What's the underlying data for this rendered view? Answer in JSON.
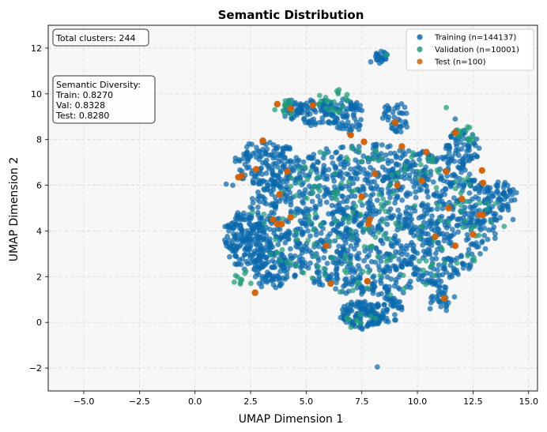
{
  "chart_data": {
    "type": "scatter",
    "title": "Semantic Distribution",
    "xlabel": "UMAP Dimension 1",
    "ylabel": "UMAP Dimension 2",
    "xlim": [
      -6.6,
      15.4
    ],
    "ylim": [
      -3.0,
      13.0
    ],
    "x_ticks": [
      -5.0,
      -2.5,
      0.0,
      2.5,
      5.0,
      7.5,
      10.0,
      12.5,
      15.0
    ],
    "y_ticks": [
      -2,
      0,
      2,
      4,
      6,
      8,
      10,
      12
    ],
    "x_tick_labels": [
      "−5.0",
      "−2.5",
      "0.0",
      "2.5",
      "5.0",
      "7.5",
      "10.0",
      "12.5",
      "15.0"
    ],
    "y_tick_labels": [
      "−2",
      "0",
      "2",
      "4",
      "6",
      "8",
      "10",
      "12"
    ],
    "grid": true,
    "legend_position": "top-right",
    "series": [
      {
        "name": "Training (n=144137)",
        "color": "#0a6aad",
        "count": 144137,
        "regions": [
          {
            "cx": 8.0,
            "cy": 4.5,
            "rx": 5.6,
            "ry": 3.3,
            "n": 1350
          },
          {
            "cx": 2.4,
            "cy": 3.6,
            "rx": 1.1,
            "ry": 1.2,
            "n": 180
          },
          {
            "cx": 3.4,
            "cy": 2.3,
            "rx": 0.8,
            "ry": 0.8,
            "n": 80
          },
          {
            "cx": 3.2,
            "cy": 7.0,
            "rx": 1.4,
            "ry": 1.0,
            "n": 130
          },
          {
            "cx": 5.4,
            "cy": 9.2,
            "rx": 0.9,
            "ry": 0.6,
            "n": 70
          },
          {
            "cx": 6.8,
            "cy": 9.0,
            "rx": 0.8,
            "ry": 0.8,
            "n": 70
          },
          {
            "cx": 9.0,
            "cy": 9.0,
            "rx": 0.6,
            "ry": 0.7,
            "n": 40
          },
          {
            "cx": 12.0,
            "cy": 7.6,
            "rx": 0.8,
            "ry": 0.8,
            "n": 70
          },
          {
            "cx": 13.7,
            "cy": 5.4,
            "rx": 0.7,
            "ry": 0.8,
            "n": 60
          },
          {
            "cx": 7.5,
            "cy": 0.3,
            "rx": 1.0,
            "ry": 0.6,
            "n": 110
          },
          {
            "cx": 8.7,
            "cy": 0.6,
            "rx": 0.6,
            "ry": 0.6,
            "n": 40
          },
          {
            "cx": 11.1,
            "cy": 1.0,
            "rx": 0.6,
            "ry": 0.6,
            "n": 30
          },
          {
            "cx": 8.45,
            "cy": 11.6,
            "rx": 0.3,
            "ry": 0.25,
            "n": 25
          },
          {
            "cx": 4.4,
            "cy": 9.3,
            "rx": 0.4,
            "ry": 0.4,
            "n": 25
          }
        ],
        "points": [
          [
            8.2,
            -1.95
          ],
          [
            7.9,
            11.4
          ],
          [
            11.7,
            8.9
          ],
          [
            1.4,
            6.05
          ],
          [
            1.7,
            6.0
          ],
          [
            14.3,
            4.5
          ]
        ]
      },
      {
        "name": "Validation (n=10001)",
        "color": "#1f9e78",
        "count": 10001,
        "regions": [
          {
            "cx": 8.0,
            "cy": 4.5,
            "rx": 5.6,
            "ry": 3.3,
            "n": 180
          },
          {
            "cx": 6.3,
            "cy": 9.7,
            "rx": 0.8,
            "ry": 0.5,
            "n": 20
          },
          {
            "cx": 4.1,
            "cy": 9.4,
            "rx": 0.5,
            "ry": 0.3,
            "n": 12
          },
          {
            "cx": 12.2,
            "cy": 8.3,
            "rx": 0.5,
            "ry": 0.4,
            "n": 12
          },
          {
            "cx": 2.2,
            "cy": 1.9,
            "rx": 0.5,
            "ry": 0.3,
            "n": 10
          },
          {
            "cx": 7.5,
            "cy": 0.0,
            "rx": 0.8,
            "ry": 0.4,
            "n": 10
          }
        ],
        "points": [
          [
            11.3,
            9.4
          ],
          [
            8.6,
            11.7
          ],
          [
            13.9,
            4.2
          ]
        ]
      },
      {
        "name": "Test (n=100)",
        "color": "#d55e00",
        "count": 100,
        "regions": [],
        "points": [
          [
            3.7,
            9.55
          ],
          [
            4.3,
            9.35
          ],
          [
            5.3,
            9.5
          ],
          [
            9.0,
            8.75
          ],
          [
            2.1,
            6.4
          ],
          [
            1.95,
            6.35
          ],
          [
            3.05,
            7.95
          ],
          [
            2.75,
            6.7
          ],
          [
            4.15,
            6.6
          ],
          [
            3.8,
            5.6
          ],
          [
            3.5,
            4.5
          ],
          [
            3.7,
            4.3
          ],
          [
            3.9,
            4.3
          ],
          [
            4.3,
            4.6
          ],
          [
            2.7,
            1.3
          ],
          [
            5.9,
            3.35
          ],
          [
            6.1,
            1.7
          ],
          [
            7.75,
            1.8
          ],
          [
            7.85,
            4.5
          ],
          [
            7.8,
            4.3
          ],
          [
            7.5,
            5.5
          ],
          [
            7.0,
            8.2
          ],
          [
            7.6,
            7.9
          ],
          [
            8.1,
            6.5
          ],
          [
            9.3,
            7.7
          ],
          [
            9.1,
            6.0
          ],
          [
            10.4,
            7.45
          ],
          [
            10.2,
            6.2
          ],
          [
            10.8,
            3.75
          ],
          [
            11.2,
            1.05
          ],
          [
            11.3,
            6.6
          ],
          [
            11.4,
            5.0
          ],
          [
            11.7,
            3.35
          ],
          [
            11.7,
            8.3
          ],
          [
            12.0,
            5.4
          ],
          [
            12.5,
            3.85
          ],
          [
            12.8,
            4.7
          ],
          [
            12.95,
            4.7
          ],
          [
            12.9,
            6.65
          ],
          [
            12.95,
            6.1
          ]
        ]
      }
    ],
    "annotations": [
      {
        "name": "total-clusters",
        "lines": [
          "Total clusters: 244"
        ]
      },
      {
        "name": "semantic-diversity",
        "lines": [
          "Semantic Diversity:",
          "Train: 0.8270",
          "Val: 0.8328",
          "Test: 0.8280"
        ]
      }
    ]
  }
}
